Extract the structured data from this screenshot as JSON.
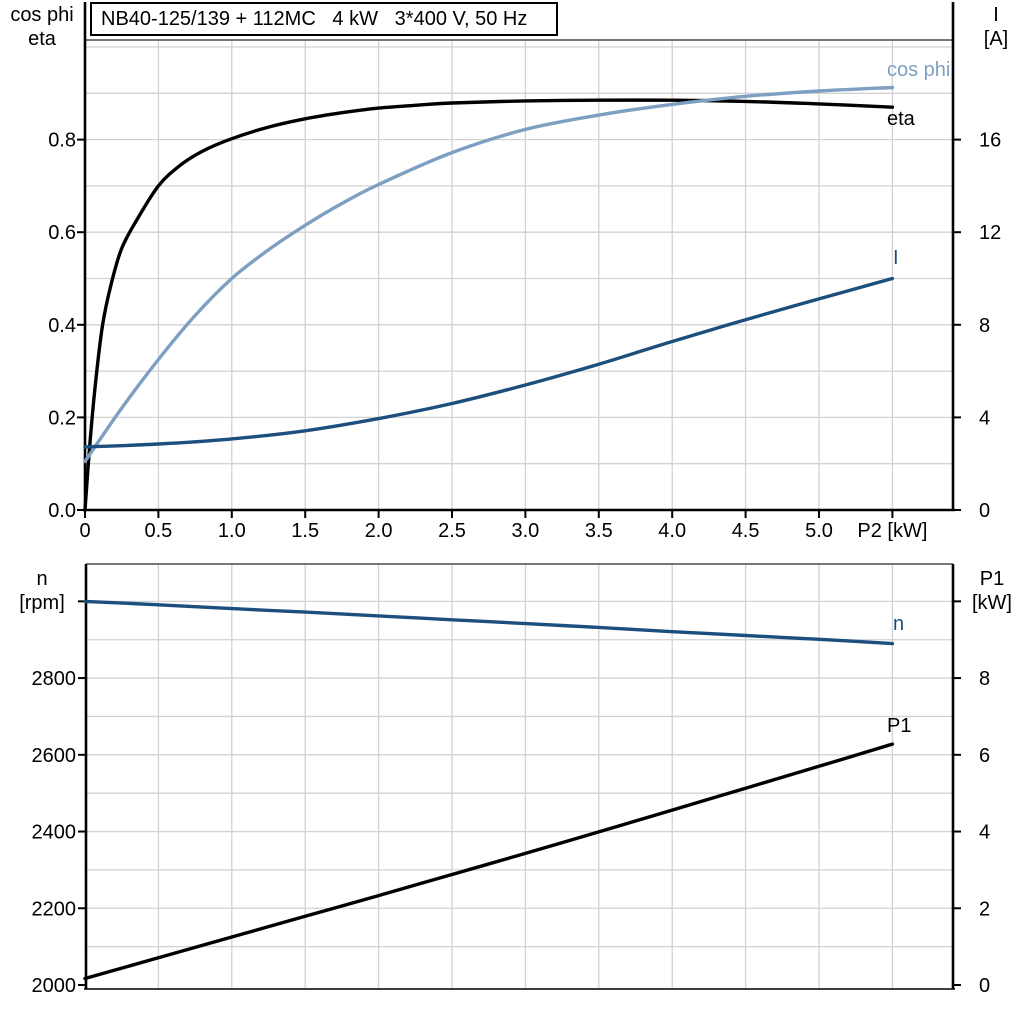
{
  "title": "NB40-125/139 + 112MC   4 kW   3*400 V, 50 Hz",
  "colors": {
    "black": "#000000",
    "dark_blue": "#1c4f7e",
    "light_blue": "#7d9fc2",
    "grid": "#d2d2d2",
    "frame": "#000000",
    "top_border": "#4a4a4a",
    "background": "#ffffff"
  },
  "chart_data": [
    {
      "type": "line",
      "title": "NB40-125/139 + 112MC   4 kW   3*400 V, 50 Hz",
      "x_axis": {
        "label": "P2 [kW]",
        "range": [
          0,
          5.91
        ],
        "tick_values": [
          0,
          0.5,
          1,
          1.5,
          2,
          2.5,
          3,
          3.5,
          4,
          4.5,
          5,
          5.5
        ],
        "tick_labels": [
          "0",
          "0.5",
          "1.0",
          "1.5",
          "2.0",
          "2.5",
          "3.0",
          "3.5",
          "4.0",
          "4.5",
          "5.0",
          "P2 [kW]"
        ],
        "grid_step": 0.5
      },
      "left_axis": {
        "title_lines": [
          "cos phi",
          "eta"
        ],
        "range": [
          0,
          1.02
        ],
        "tick_values": [
          0,
          0.2,
          0.4,
          0.6,
          0.8
        ],
        "tick_labels": [
          "0.0",
          "0.2",
          "0.4",
          "0.6",
          "0.8"
        ],
        "grid_step": 0.1
      },
      "right_axis": {
        "title_lines": [
          "I",
          "[A]"
        ],
        "range": [
          0,
          20.3
        ],
        "tick_values": [
          0,
          4,
          8,
          12,
          16
        ],
        "tick_labels": [
          "0",
          "4",
          "8",
          "12",
          "16"
        ],
        "grid_step": 2
      },
      "grid": true,
      "series": [
        {
          "name": "eta",
          "label": "eta",
          "axis": "left",
          "color": "black",
          "points": [
            [
              0,
              0
            ],
            [
              0.03,
              0.13
            ],
            [
              0.07,
              0.27
            ],
            [
              0.12,
              0.4
            ],
            [
              0.18,
              0.49
            ],
            [
              0.25,
              0.565
            ],
            [
              0.35,
              0.625
            ],
            [
              0.5,
              0.7
            ],
            [
              0.65,
              0.745
            ],
            [
              0.8,
              0.775
            ],
            [
              1.0,
              0.802
            ],
            [
              1.25,
              0.827
            ],
            [
              1.5,
              0.845
            ],
            [
              1.75,
              0.858
            ],
            [
              2.0,
              0.868
            ],
            [
              2.25,
              0.874
            ],
            [
              2.5,
              0.879
            ],
            [
              3.0,
              0.8835
            ],
            [
              3.5,
              0.885
            ],
            [
              4.0,
              0.885
            ],
            [
              4.5,
              0.8825
            ],
            [
              5.0,
              0.877
            ],
            [
              5.5,
              0.87
            ]
          ]
        },
        {
          "name": "cos_phi",
          "label": "cos phi",
          "axis": "left",
          "color": "light_blue",
          "points": [
            [
              0,
              0.105
            ],
            [
              0.25,
              0.22
            ],
            [
              0.5,
              0.325
            ],
            [
              0.75,
              0.42
            ],
            [
              1.0,
              0.5
            ],
            [
              1.25,
              0.562
            ],
            [
              1.5,
              0.615
            ],
            [
              1.75,
              0.662
            ],
            [
              2.0,
              0.703
            ],
            [
              2.5,
              0.772
            ],
            [
              3.0,
              0.822
            ],
            [
              3.5,
              0.853
            ],
            [
              4.0,
              0.876
            ],
            [
              4.5,
              0.8935
            ],
            [
              5.0,
              0.905
            ],
            [
              5.5,
              0.9125
            ]
          ]
        },
        {
          "name": "I",
          "label": "I",
          "axis": "right",
          "color": "dark_blue",
          "points": [
            [
              0,
              2.72
            ],
            [
              0.5,
              2.85
            ],
            [
              1.0,
              3.07
            ],
            [
              1.5,
              3.42
            ],
            [
              2.0,
              3.95
            ],
            [
              2.5,
              4.6
            ],
            [
              3.0,
              5.4
            ],
            [
              3.5,
              6.3
            ],
            [
              4.0,
              7.28
            ],
            [
              4.5,
              8.22
            ],
            [
              5.0,
              9.12
            ],
            [
              5.5,
              10.0
            ]
          ]
        }
      ]
    },
    {
      "type": "line",
      "title": "",
      "x_axis": {
        "label": "",
        "range": [
          0,
          5.91
        ],
        "tick_values": [],
        "tick_labels": [],
        "grid_step": 0.5
      },
      "left_axis": {
        "title_lines": [
          "n",
          "[rpm]"
        ],
        "range": [
          1990,
          3100
        ],
        "tick_values": [
          2000,
          2200,
          2400,
          2600,
          2800
        ],
        "tick_labels": [
          "2000",
          "2200",
          "2400",
          "2600",
          "2800"
        ],
        "extra_tick_values": [
          3000
        ],
        "grid_step": 100
      },
      "right_axis": {
        "title_lines": [
          "P1",
          "[kW]"
        ],
        "range": [
          0,
          11
        ],
        "tick_values": [
          0,
          2,
          4,
          6,
          8
        ],
        "tick_labels": [
          "0",
          "2",
          "4",
          "6",
          "8"
        ],
        "extra_tick_values": [
          10
        ],
        "grid_step": 1
      },
      "grid": true,
      "series": [
        {
          "name": "P1",
          "label": "P1",
          "axis": "right",
          "color": "black",
          "points": [
            [
              0,
              0.17
            ],
            [
              0.5,
              0.71
            ],
            [
              1.0,
              1.25
            ],
            [
              1.5,
              1.79
            ],
            [
              2.0,
              2.33
            ],
            [
              2.5,
              2.88
            ],
            [
              3.0,
              3.43
            ],
            [
              3.5,
              3.99
            ],
            [
              4.0,
              4.56
            ],
            [
              4.5,
              5.13
            ],
            [
              5.0,
              5.7
            ],
            [
              5.5,
              6.28
            ]
          ]
        },
        {
          "name": "n",
          "label": "n",
          "axis": "left",
          "color": "dark_blue",
          "points": [
            [
              0,
              3000
            ],
            [
              0.5,
              2991
            ],
            [
              1.0,
              2981
            ],
            [
              1.5,
              2972
            ],
            [
              2.0,
              2962
            ],
            [
              2.5,
              2952
            ],
            [
              3.0,
              2942
            ],
            [
              3.5,
              2932
            ],
            [
              4.0,
              2921
            ],
            [
              4.5,
              2911
            ],
            [
              5.0,
              2901
            ],
            [
              5.5,
              2890
            ]
          ]
        }
      ]
    }
  ]
}
